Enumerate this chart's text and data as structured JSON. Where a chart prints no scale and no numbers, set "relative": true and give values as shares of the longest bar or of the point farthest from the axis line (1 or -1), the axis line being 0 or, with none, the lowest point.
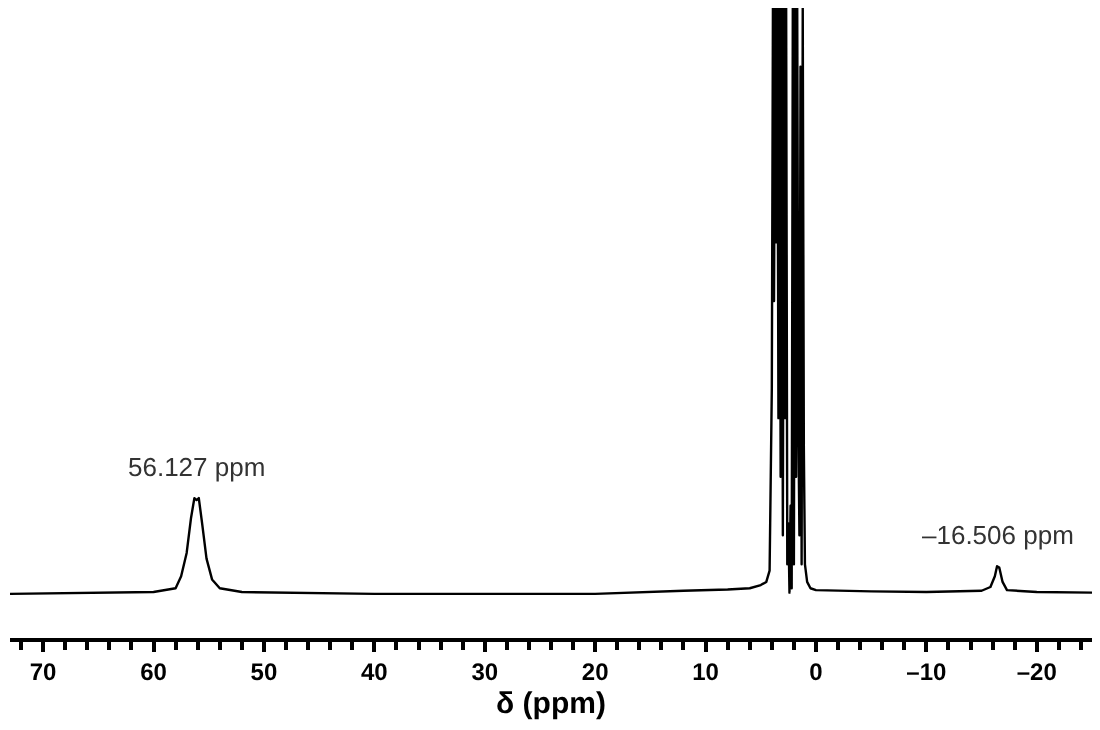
{
  "chart_data": {
    "type": "line",
    "relative": true,
    "xlabel": "δ (ppm)",
    "xlim": [
      73,
      -25
    ],
    "xticks": [
      {
        "value": 70,
        "label": "70"
      },
      {
        "value": 60,
        "label": "60"
      },
      {
        "value": 50,
        "label": "50"
      },
      {
        "value": 40,
        "label": "40"
      },
      {
        "value": 30,
        "label": "30"
      },
      {
        "value": 20,
        "label": "20"
      },
      {
        "value": 10,
        "label": "10"
      },
      {
        "value": 0,
        "label": "0"
      },
      {
        "value": -10,
        "label": "–10"
      },
      {
        "value": -20,
        "label": "–20"
      },
      {
        "value": 72,
        "label": null
      },
      {
        "value": 68,
        "label": null
      },
      {
        "value": 66,
        "label": null
      },
      {
        "value": 64,
        "label": null
      },
      {
        "value": 62,
        "label": null
      },
      {
        "value": 58,
        "label": null
      },
      {
        "value": 56,
        "label": null
      },
      {
        "value": 54,
        "label": null
      },
      {
        "value": 52,
        "label": null
      },
      {
        "value": 48,
        "label": null
      },
      {
        "value": 46,
        "label": null
      },
      {
        "value": 44,
        "label": null
      },
      {
        "value": 42,
        "label": null
      },
      {
        "value": 38,
        "label": null
      },
      {
        "value": 36,
        "label": null
      },
      {
        "value": 34,
        "label": null
      },
      {
        "value": 32,
        "label": null
      },
      {
        "value": 28,
        "label": null
      },
      {
        "value": 26,
        "label": null
      },
      {
        "value": 24,
        "label": null
      },
      {
        "value": 22,
        "label": null
      },
      {
        "value": 18,
        "label": null
      },
      {
        "value": 16,
        "label": null
      },
      {
        "value": 14,
        "label": null
      },
      {
        "value": 12,
        "label": null
      },
      {
        "value": 8,
        "label": null
      },
      {
        "value": 6,
        "label": null
      },
      {
        "value": 4,
        "label": null
      },
      {
        "value": 2,
        "label": null
      },
      {
        "value": -2,
        "label": null
      },
      {
        "value": -4,
        "label": null
      },
      {
        "value": -6,
        "label": null
      },
      {
        "value": -8,
        "label": null
      },
      {
        "value": -12,
        "label": null
      },
      {
        "value": -14,
        "label": null
      },
      {
        "value": -16,
        "label": null
      },
      {
        "value": -18,
        "label": null
      },
      {
        "value": -22,
        "label": null
      },
      {
        "value": -24,
        "label": null
      }
    ],
    "marker": "none",
    "line_style": "solid",
    "annotations": [
      {
        "text": "56.127 ppm",
        "x": 56.127,
        "y": 0.222
      },
      {
        "text": "–16.506 ppm",
        "x": -16.506,
        "y": 0.114
      }
    ],
    "series": [
      {
        "color": "#000000",
        "x": [
          73,
          60,
          58,
          57.5,
          57,
          56.6,
          56.3,
          56.1,
          55.9,
          55.6,
          55.2,
          54.7,
          54,
          52,
          40,
          20,
          12,
          8,
          6,
          5,
          4.5,
          4.2,
          4.0,
          3.9,
          3.8,
          3.7,
          3.6,
          3.5,
          3.4,
          3.3,
          3.2,
          3.1,
          3.0,
          2.9,
          2.8,
          2.7,
          2.6,
          2.5,
          2.4,
          2.3,
          2.2,
          2.1,
          2.0,
          1.9,
          1.8,
          1.7,
          1.6,
          1.5,
          1.4,
          1.3,
          1.2,
          1.1,
          1.0,
          0.8,
          0.5,
          0,
          -5,
          -10,
          -15,
          -15.8,
          -16.2,
          -16.4,
          -16.6,
          -16.9,
          -17.3,
          -20,
          -25
        ],
        "values": [
          0.07,
          0.073,
          0.079,
          0.098,
          0.135,
          0.191,
          0.222,
          0.219,
          0.222,
          0.182,
          0.126,
          0.093,
          0.079,
          0.073,
          0.07,
          0.07,
          0.075,
          0.077,
          0.079,
          0.084,
          0.089,
          0.107,
          0.396,
          1,
          0.535,
          1,
          0.628,
          1,
          0.349,
          1,
          0.256,
          1,
          0.163,
          1,
          0.349,
          1,
          0.117,
          0.182,
          0.072,
          0.21,
          0.079,
          1,
          0.117,
          1,
          0.256,
          1,
          0.349,
          0.163,
          0.907,
          0.117,
          1,
          0.303,
          0.117,
          0.089,
          0.079,
          0.076,
          0.074,
          0.073,
          0.075,
          0.081,
          0.098,
          0.114,
          0.112,
          0.089,
          0.076,
          0.073,
          0.072
        ]
      }
    ]
  }
}
